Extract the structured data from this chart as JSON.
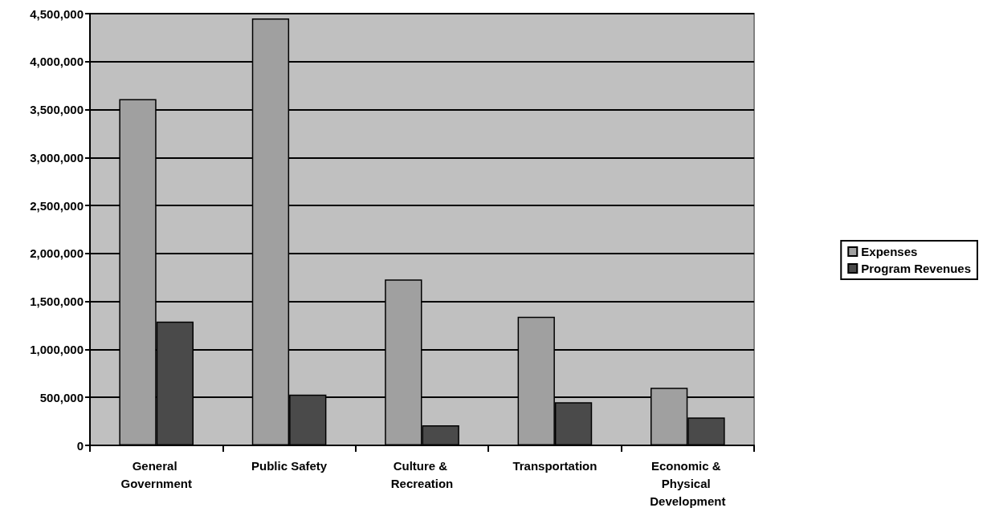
{
  "chart_data": {
    "type": "bar",
    "categories": [
      "General Government",
      "Public Safety",
      "Culture & Recreation",
      "Transportation",
      "Economic & Physical Development"
    ],
    "series": [
      {
        "name": "Expenses",
        "color": "#a0a0a0",
        "values": [
          3610000,
          4450000,
          1730000,
          1340000,
          600000
        ]
      },
      {
        "name": "Program Revenues",
        "color": "#4a4a4a",
        "values": [
          1290000,
          530000,
          210000,
          450000,
          290000
        ]
      }
    ],
    "ylim": [
      0,
      4500000
    ],
    "yticks": [
      0,
      {
        "value": 500000,
        "label": "500,000"
      },
      {
        "value": 1000000,
        "label": "1,000,000"
      },
      {
        "value": 1500000,
        "label": "1,500,000"
      },
      {
        "value": 2000000,
        "label": "2,000,000"
      },
      {
        "value": 2500000,
        "label": "2,500,000"
      },
      {
        "value": 3000000,
        "label": "3,000,000"
      },
      {
        "value": 3500000,
        "label": "3,500,000"
      },
      {
        "value": 4000000,
        "label": "4,000,000"
      },
      {
        "value": 4500000,
        "label": "4,500,000"
      }
    ],
    "grid": "y",
    "legend": "right"
  }
}
